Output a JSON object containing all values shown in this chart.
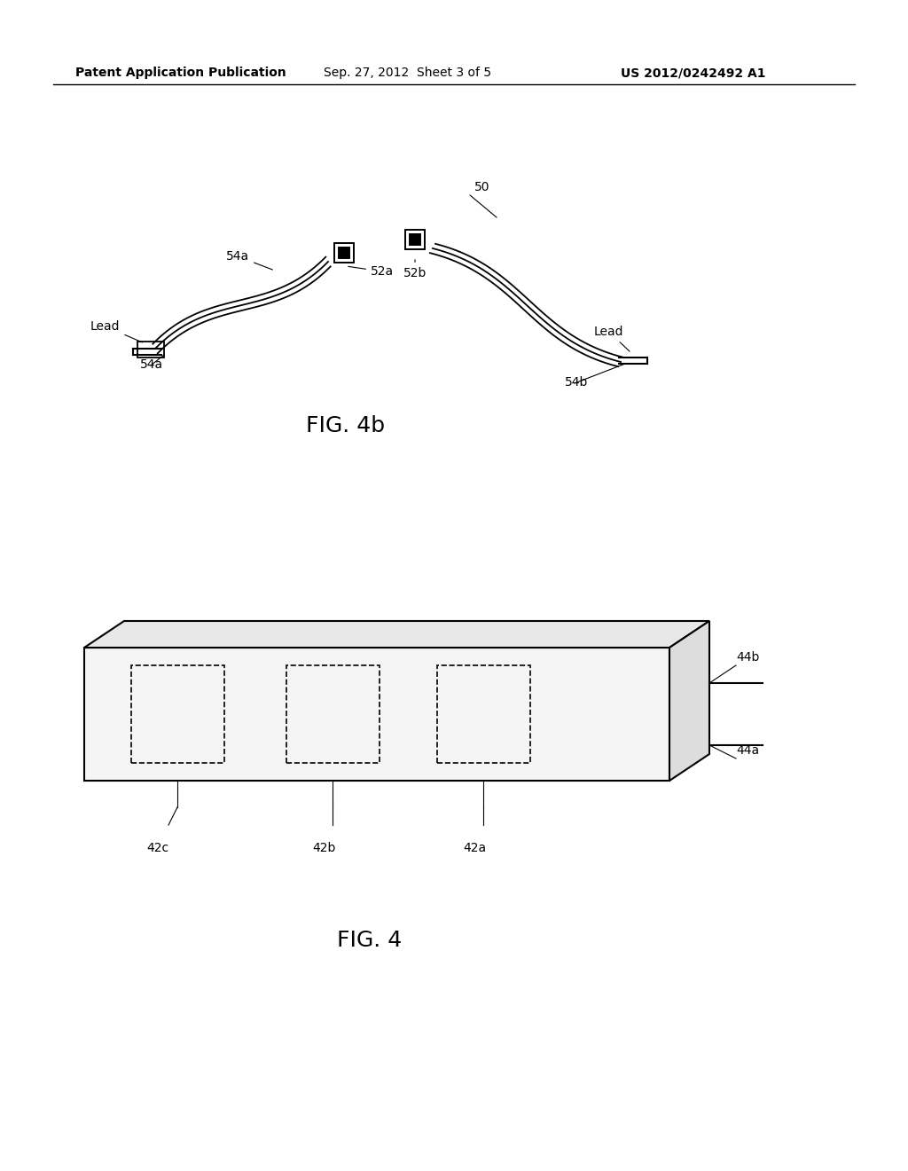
{
  "bg_color": "#ffffff",
  "header_text1": "Patent Application Publication",
  "header_text2": "Sep. 27, 2012  Sheet 3 of 5",
  "header_text3": "US 2012/0242492 A1",
  "fig4b_label": "FIG. 4b",
  "fig4_label": "FIG. 4",
  "label_fontsize": 16,
  "header_fontsize": 10,
  "annotation_fontsize": 10
}
